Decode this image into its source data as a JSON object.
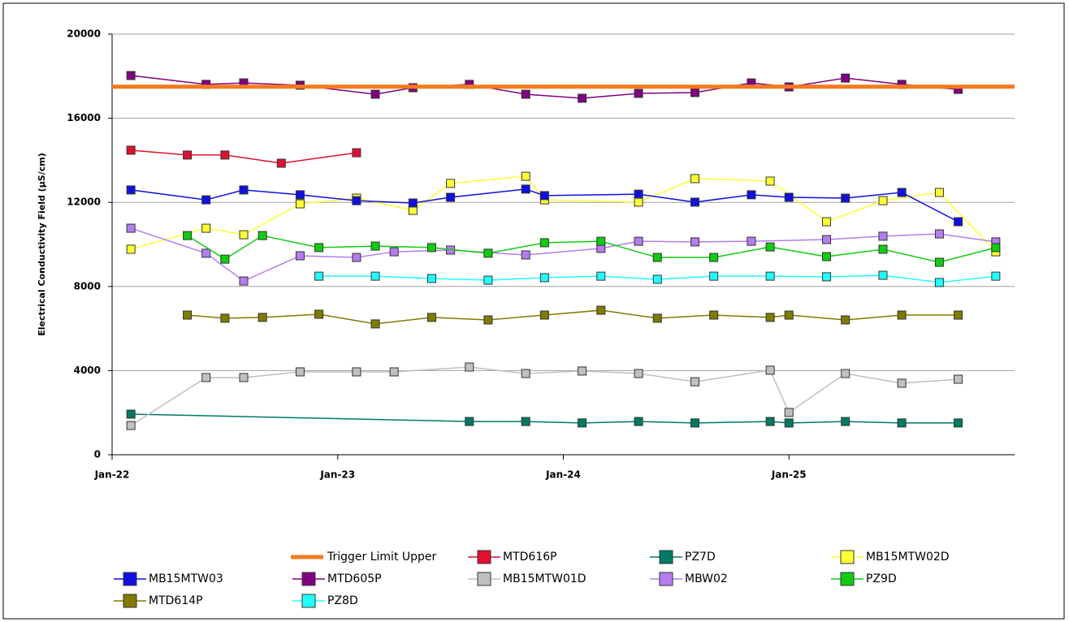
{
  "chart_data": {
    "type": "line",
    "ylabel": "Electrical Conductivity Field (µS/cm)",
    "xlim": [
      "2022-01",
      "2026-01"
    ],
    "xticks": [
      {
        "value": "2022-01",
        "label": "Jan-22"
      },
      {
        "value": "2023-01",
        "label": "Jan-23"
      },
      {
        "value": "2024-01",
        "label": "Jan-24"
      },
      {
        "value": "2025-01",
        "label": "Jan-25"
      }
    ],
    "ylim": [
      0,
      20000
    ],
    "yticks": [
      0,
      4000,
      8000,
      12000,
      16000,
      20000
    ],
    "grid": true,
    "legend": "bottom",
    "series": [
      {
        "name": "Trigger Limit Upper",
        "color": "#f47a1f",
        "markers": false,
        "x": [
          "2022-01",
          "2026-01"
        ],
        "values": [
          17500,
          17500
        ]
      },
      {
        "name": "MTD616P",
        "color": "#e0102f",
        "x": [
          "2022-02",
          "2022-05",
          "2022-07",
          "2022-10",
          "2023-02"
        ],
        "values": [
          14480,
          14250,
          14250,
          13860,
          14360
        ]
      },
      {
        "name": "PZ7D",
        "color": "#007a65",
        "x": [
          "2022-02",
          "2023-08",
          "2023-11",
          "2024-02",
          "2024-05",
          "2024-08",
          "2024-12",
          "2025-01",
          "2025-04",
          "2025-07",
          "2025-10"
        ],
        "values": [
          1930,
          1580,
          1580,
          1510,
          1580,
          1510,
          1580,
          1510,
          1580,
          1510,
          1510
        ]
      },
      {
        "name": "MB15MTW02D",
        "color": "#ffff33",
        "x": [
          "2022-02",
          "2022-06",
          "2022-08",
          "2022-11",
          "2023-02",
          "2023-05",
          "2023-07",
          "2023-11",
          "2023-12",
          "2024-05",
          "2024-08",
          "2024-12",
          "2025-03",
          "2025-06",
          "2025-09",
          "2025-12"
        ],
        "values": [
          9770,
          10770,
          10460,
          11930,
          12200,
          11620,
          12900,
          13240,
          12120,
          12010,
          13130,
          13010,
          11080,
          12080,
          12470,
          9650
        ]
      },
      {
        "name": "MB15MTW03",
        "color": "#1010e0",
        "x": [
          "2022-02",
          "2022-06",
          "2022-08",
          "2022-11",
          "2023-02",
          "2023-05",
          "2023-07",
          "2023-11",
          "2023-12",
          "2024-05",
          "2024-08",
          "2024-11",
          "2025-01",
          "2025-04",
          "2025-07",
          "2025-10"
        ],
        "values": [
          12590,
          12120,
          12590,
          12360,
          12080,
          11970,
          12240,
          12630,
          12320,
          12390,
          12010,
          12360,
          12240,
          12200,
          12470,
          11080
        ]
      },
      {
        "name": "MTD605P",
        "color": "#800080",
        "x": [
          "2022-02",
          "2022-06",
          "2022-08",
          "2022-11",
          "2023-03",
          "2023-05",
          "2023-08",
          "2023-11",
          "2024-02",
          "2024-05",
          "2024-08",
          "2024-11",
          "2025-01",
          "2025-04",
          "2025-07",
          "2025-10"
        ],
        "values": [
          18030,
          17610,
          17680,
          17570,
          17140,
          17450,
          17610,
          17140,
          16950,
          17180,
          17220,
          17680,
          17490,
          17910,
          17610,
          17370
        ]
      },
      {
        "name": "MB15MTW01D",
        "color": "#c0c0c0",
        "x": [
          "2022-02",
          "2022-06",
          "2022-08",
          "2022-11",
          "2023-02",
          "2023-04",
          "2023-08",
          "2023-11",
          "2024-02",
          "2024-05",
          "2024-08",
          "2024-12",
          "2025-01",
          "2025-04",
          "2025-07",
          "2025-10"
        ],
        "values": [
          1390,
          3670,
          3670,
          3940,
          3940,
          3940,
          4170,
          3860,
          3980,
          3860,
          3470,
          4020,
          2010,
          3860,
          3400,
          3590
        ]
      },
      {
        "name": "MBW02",
        "color": "#b57cf0",
        "x": [
          "2022-02",
          "2022-06",
          "2022-08",
          "2022-11",
          "2023-02",
          "2023-04",
          "2023-07",
          "2023-11",
          "2024-03",
          "2024-05",
          "2024-08",
          "2024-11",
          "2025-03",
          "2025-06",
          "2025-09",
          "2025-12"
        ],
        "values": [
          10770,
          9580,
          8260,
          9460,
          9380,
          9650,
          9730,
          9500,
          9810,
          10150,
          10120,
          10150,
          10230,
          10390,
          10500,
          10120
        ]
      },
      {
        "name": "PZ9D",
        "color": "#10cc10",
        "x": [
          "2022-05",
          "2022-07",
          "2022-09",
          "2022-12",
          "2023-03",
          "2023-06",
          "2023-09",
          "2023-12",
          "2024-03",
          "2024-06",
          "2024-09",
          "2024-12",
          "2025-03",
          "2025-06",
          "2025-09",
          "2025-12"
        ],
        "values": [
          10420,
          9300,
          10420,
          9850,
          9920,
          9850,
          9580,
          10080,
          10150,
          9380,
          9380,
          9880,
          9420,
          9770,
          9150,
          9850
        ]
      },
      {
        "name": "MTD614P",
        "color": "#807a00",
        "x": [
          "2022-05",
          "2022-07",
          "2022-09",
          "2022-12",
          "2023-03",
          "2023-06",
          "2023-09",
          "2023-12",
          "2024-03",
          "2024-06",
          "2024-09",
          "2024-12",
          "2025-01",
          "2025-04",
          "2025-07",
          "2025-10"
        ],
        "values": [
          6640,
          6490,
          6530,
          6680,
          6220,
          6530,
          6410,
          6640,
          6870,
          6490,
          6640,
          6530,
          6640,
          6410,
          6640,
          6640
        ]
      },
      {
        "name": "PZ8D",
        "color": "#20ffff",
        "x": [
          "2022-12",
          "2023-03",
          "2023-06",
          "2023-09",
          "2023-12",
          "2024-03",
          "2024-06",
          "2024-09",
          "2024-12",
          "2025-03",
          "2025-06",
          "2025-09",
          "2025-12"
        ],
        "values": [
          8490,
          8490,
          8380,
          8300,
          8420,
          8490,
          8340,
          8490,
          8490,
          8460,
          8530,
          8190,
          8490
        ]
      }
    ]
  }
}
